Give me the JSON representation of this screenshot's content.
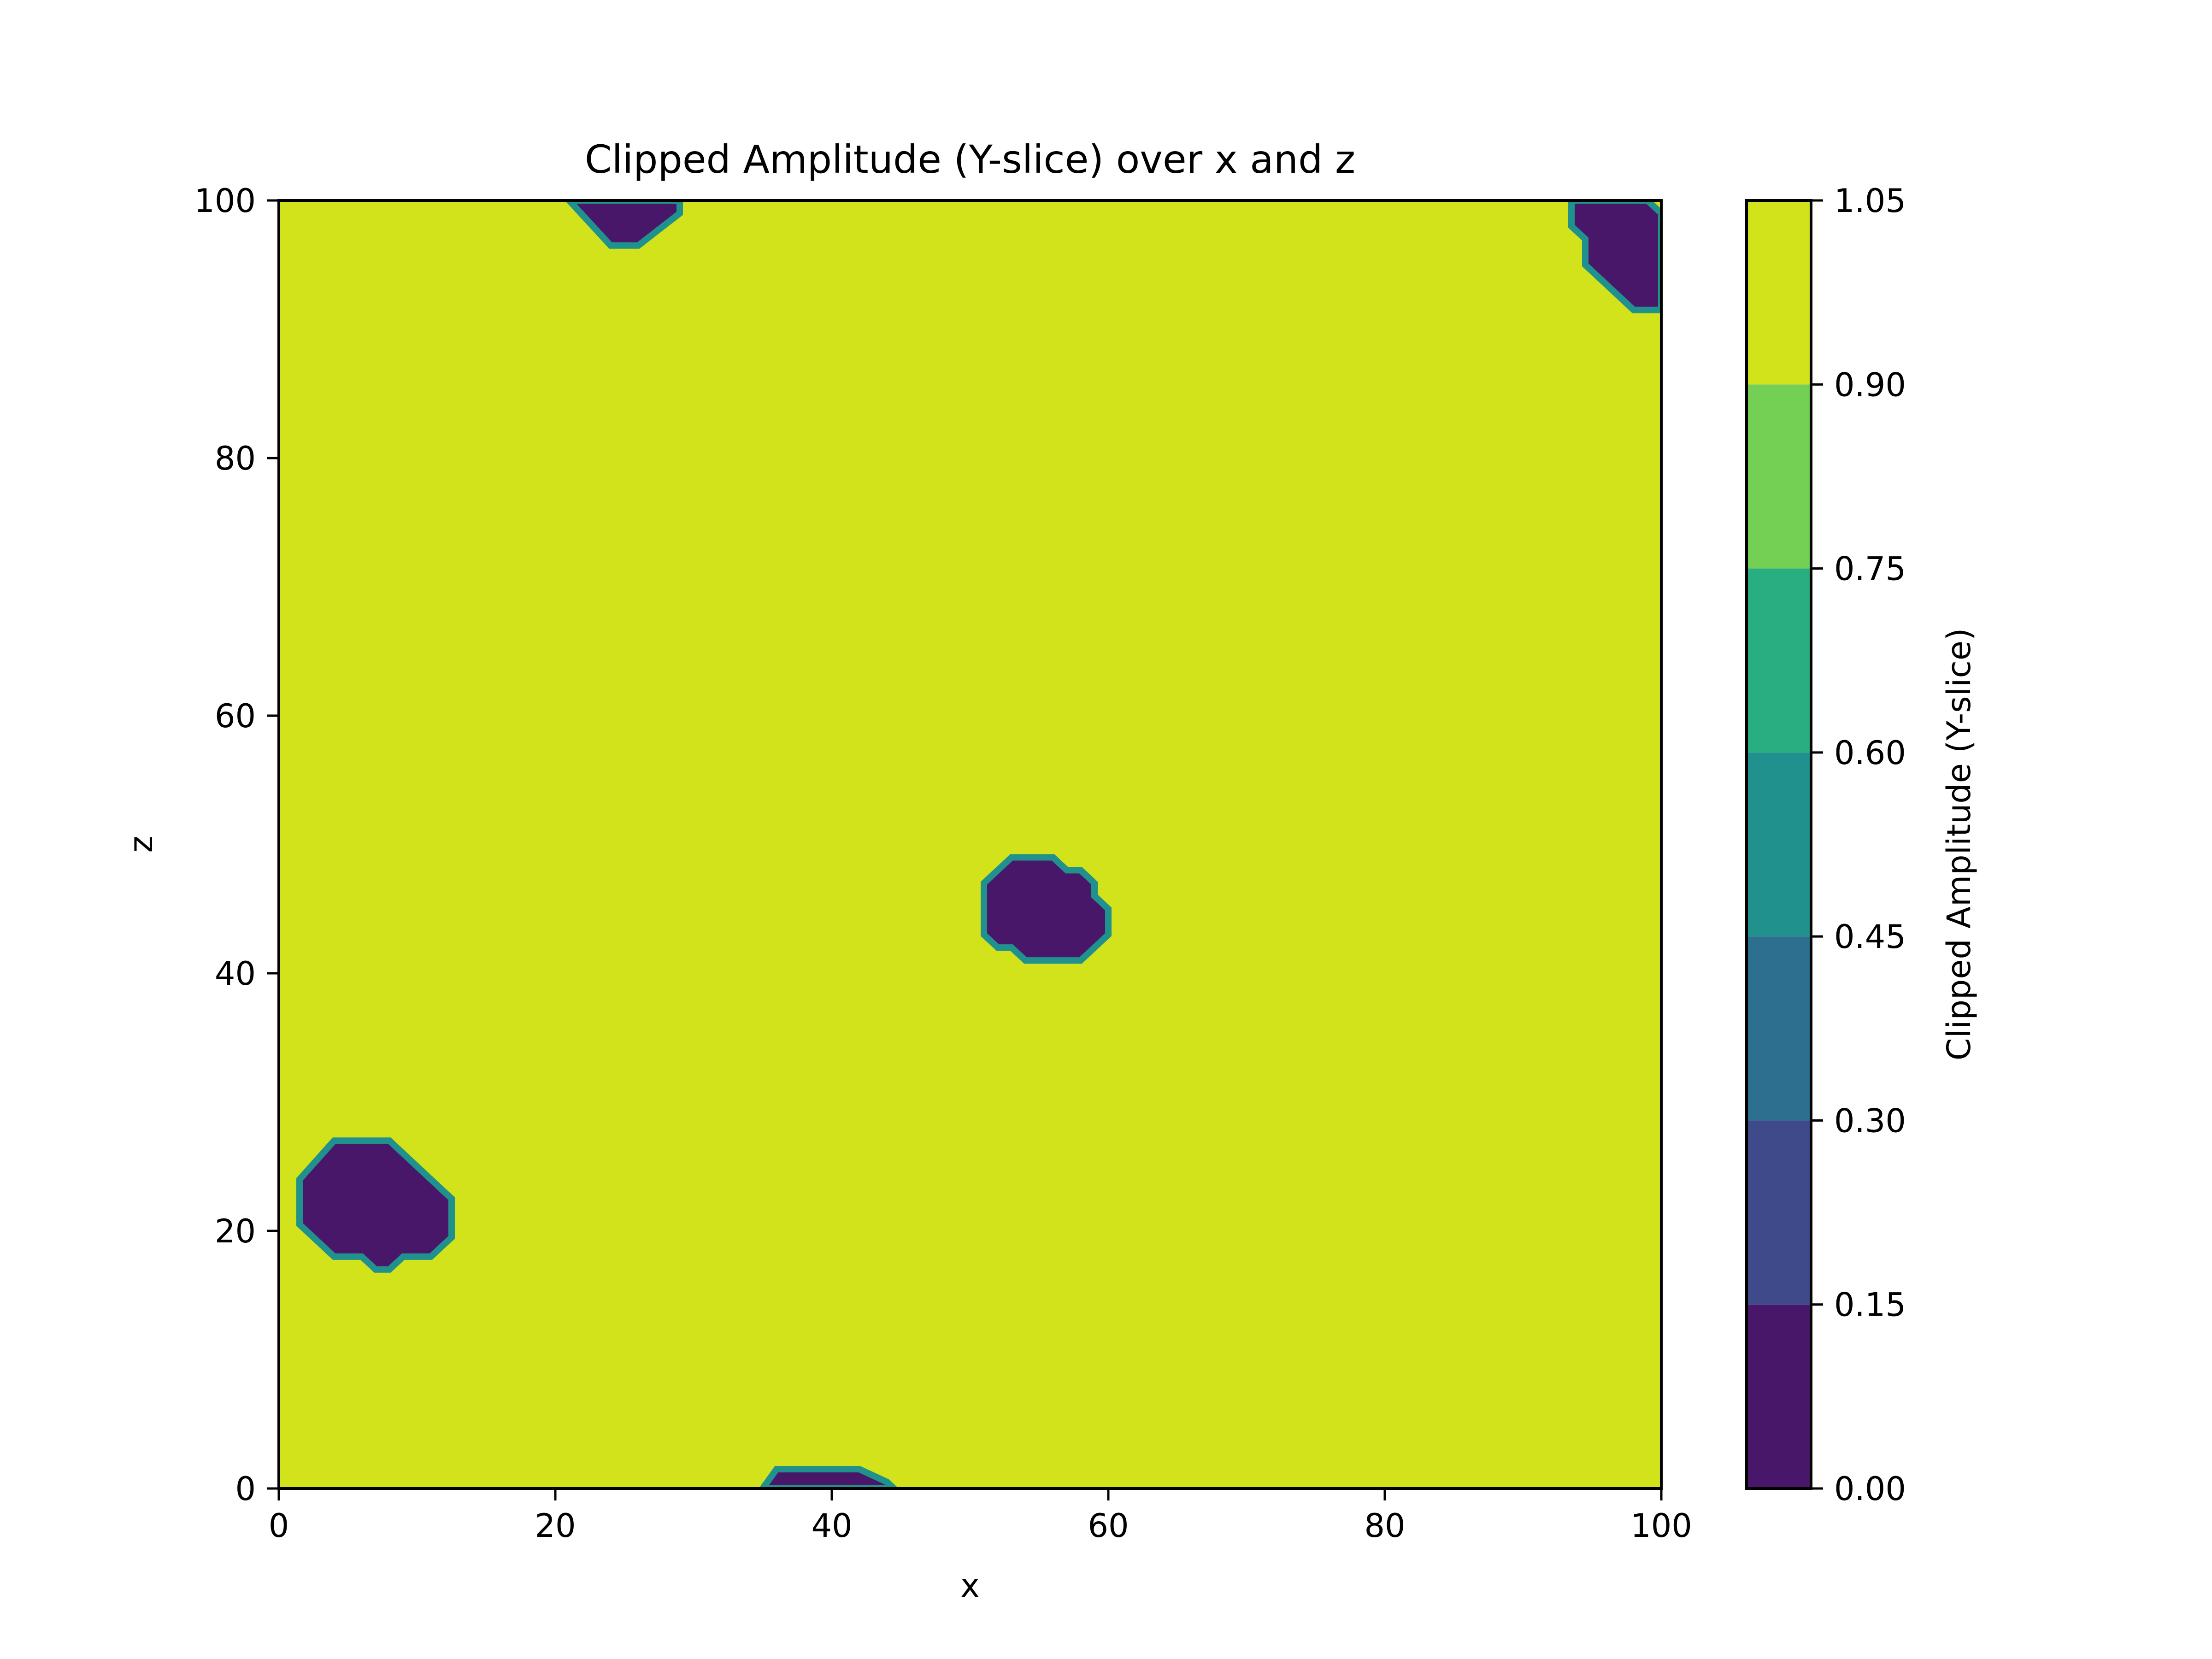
{
  "chart_data": {
    "type": "heatmap",
    "title": "Clipped Amplitude (Y-slice) over x and z",
    "xlabel": "x",
    "ylabel": "z",
    "xlim": [
      0,
      100
    ],
    "ylim": [
      0,
      100
    ],
    "xticks": [
      0,
      20,
      40,
      60,
      80,
      100
    ],
    "yticks": [
      0,
      20,
      40,
      60,
      80,
      100
    ],
    "grid": false,
    "background_value": 1.0,
    "colorbar": {
      "label": "Clipped Amplitude (Y-slice)",
      "ticks": [
        "0.00",
        "0.15",
        "0.30",
        "0.45",
        "0.60",
        "0.75",
        "0.90",
        "1.05"
      ],
      "levels": [
        0.0,
        0.15,
        0.3,
        0.45,
        0.6,
        0.75,
        0.9,
        1.05
      ],
      "colors": [
        "#481769",
        "#3e4a89",
        "#2d6f8e",
        "#20918c",
        "#28ae80",
        "#73d055",
        "#d2e21b"
      ]
    },
    "regions": [
      {
        "name": "low-amplitude-region",
        "value": 0.0,
        "polygon": [
          [
            21,
            100
          ],
          [
            29,
            100
          ],
          [
            29,
            99
          ],
          [
            26,
            96.5
          ],
          [
            24,
            96.5
          ],
          [
            21,
            100
          ]
        ]
      },
      {
        "name": "low-amplitude-region",
        "value": 0.0,
        "polygon": [
          [
            93.5,
            100
          ],
          [
            99,
            100
          ],
          [
            100,
            99
          ],
          [
            100,
            91.5
          ],
          [
            98,
            91.5
          ],
          [
            94.5,
            95
          ],
          [
            94.5,
            97
          ],
          [
            93.5,
            98
          ]
        ]
      },
      {
        "name": "low-amplitude-region",
        "value": 0.0,
        "polygon": [
          [
            51,
            47
          ],
          [
            53,
            49
          ],
          [
            56,
            49
          ],
          [
            57,
            48
          ],
          [
            58,
            48
          ],
          [
            59,
            47
          ],
          [
            59,
            46
          ],
          [
            60,
            45
          ],
          [
            60,
            43
          ],
          [
            58,
            41
          ],
          [
            54,
            41
          ],
          [
            53,
            42
          ],
          [
            52,
            42
          ],
          [
            51,
            43
          ]
        ]
      },
      {
        "name": "low-amplitude-region",
        "value": 0.0,
        "polygon": [
          [
            1.5,
            24
          ],
          [
            4,
            27
          ],
          [
            8,
            27
          ],
          [
            12.5,
            22.5
          ],
          [
            12.5,
            19.5
          ],
          [
            11,
            18
          ],
          [
            9,
            18
          ],
          [
            8,
            17
          ],
          [
            7,
            17
          ],
          [
            6,
            18
          ],
          [
            4,
            18
          ],
          [
            1.5,
            20.5
          ]
        ]
      },
      {
        "name": "low-amplitude-region",
        "value": 0.0,
        "polygon": [
          [
            35,
            0
          ],
          [
            36,
            1.5
          ],
          [
            42,
            1.5
          ],
          [
            43,
            1
          ],
          [
            44,
            0.5
          ],
          [
            44.5,
            0
          ]
        ]
      }
    ]
  }
}
